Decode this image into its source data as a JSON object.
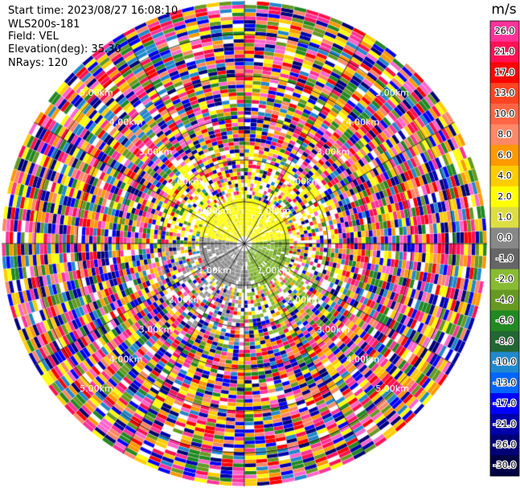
{
  "header": {
    "start_time": "Start time: 2023/08/27 16:08:10",
    "station": "WLS200s-181",
    "field": "Field: VEL",
    "elevation": "Elevation(deg): 35.30",
    "nrays": "NRays: 120"
  },
  "chart_data": {
    "type": "heatmap",
    "projection": "polar",
    "field": "VEL",
    "units": "m/s",
    "nrays": 120,
    "range_rings_km": [
      1.0,
      2.0,
      3.0,
      4.0,
      5.0
    ],
    "range_ring_labels": [
      "1.00km",
      "2.00km",
      "3.00km",
      "4.00km",
      "5.00km"
    ],
    "max_range_km": 5.8,
    "colorbar": {
      "label": "m/s",
      "tick_labels": [
        "26.0",
        "21.0",
        "17.0",
        "13.0",
        "10.0",
        "8.0",
        "6.0",
        "4.0",
        "2.0",
        "1.0",
        "0.0",
        "-1.0",
        "-2.0",
        "-4.0",
        "-6.0",
        "-8.0",
        "-10.0",
        "-13.0",
        "-17.0",
        "-21.0",
        "-26.0",
        "-30.0"
      ],
      "colors": [
        "#ff3399",
        "#ff1155",
        "#ff0000",
        "#ff4422",
        "#ff6644",
        "#ff8866",
        "#ff9900",
        "#ffcc00",
        "#ffff00",
        "#dddd44",
        "#888888",
        "#666666",
        "#88bb33",
        "#669922",
        "#228822",
        "#226633",
        "#2288cc",
        "#0066ff",
        "#0000ff",
        "#0000aa",
        "#000077",
        "#000044"
      ],
      "bins": [
        {
          "label": "26.0",
          "color": "#ff3399"
        },
        {
          "label": "21.0",
          "color": "#ff1155"
        },
        {
          "label": "17.0",
          "color": "#ff0000"
        },
        {
          "label": "13.0",
          "color": "#ff4422"
        },
        {
          "label": "10.0",
          "color": "#ff6644"
        },
        {
          "label": "8.0",
          "color": "#ff8866"
        },
        {
          "label": "6.0",
          "color": "#ff9900"
        },
        {
          "label": "4.0",
          "color": "#ffcc00"
        },
        {
          "label": "2.0",
          "color": "#ffff00"
        },
        {
          "label": "1.0",
          "color": "#dddd44"
        },
        {
          "label": "0.0",
          "color": "#888888"
        },
        {
          "label": "-1.0",
          "color": "#666666"
        },
        {
          "label": "-2.0",
          "color": "#88bb33"
        },
        {
          "label": "-4.0",
          "color": "#669922"
        },
        {
          "label": "-6.0",
          "color": "#228822"
        },
        {
          "label": "-8.0",
          "color": "#226633"
        },
        {
          "label": "-10.0",
          "color": "#2288cc"
        },
        {
          "label": "-13.0",
          "color": "#0066ff"
        },
        {
          "label": "-17.0",
          "color": "#0000ff"
        },
        {
          "label": "-21.0",
          "color": "#0000aa"
        },
        {
          "label": "-26.0",
          "color": "#000077"
        },
        {
          "label": "-30.0",
          "color": "#000044"
        }
      ]
    }
  }
}
